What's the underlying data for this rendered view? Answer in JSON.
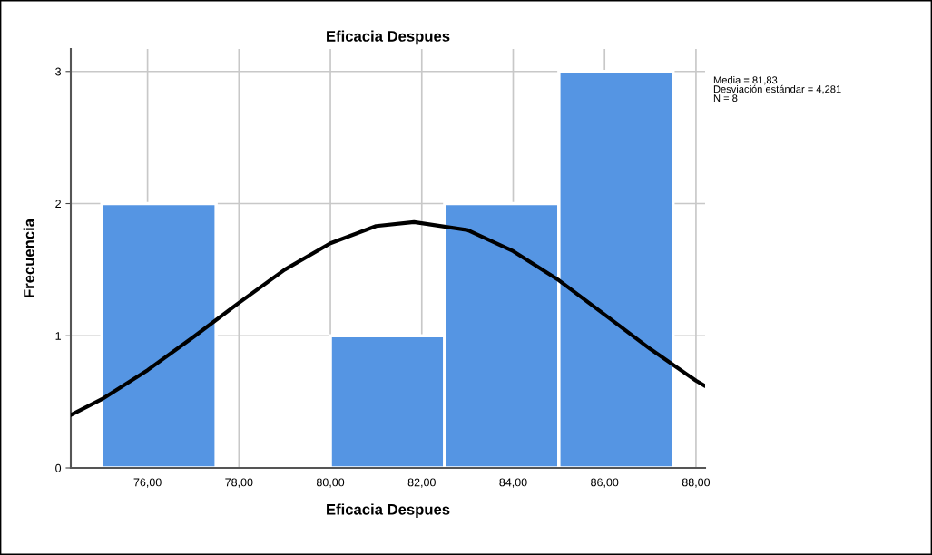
{
  "chart_data": {
    "type": "histogram",
    "title": "Eficacia Despues",
    "xlabel": "Eficacia Despues",
    "ylabel": "Frecuencia",
    "series": [
      {
        "bins": [
          75,
          77.5,
          80,
          82.5,
          85,
          87.5
        ],
        "values": [
          2,
          0,
          1,
          2,
          3
        ],
        "color": "#5595e3"
      },
      {
        "type": "line",
        "x": [
          74.32,
          75,
          76,
          77,
          78,
          79,
          80,
          81,
          81.83,
          83,
          84,
          85,
          86,
          87,
          88,
          88.2
        ],
        "values": [
          0.4,
          0.52,
          0.74,
          0.99,
          1.25,
          1.5,
          1.7,
          1.83,
          1.86,
          1.8,
          1.64,
          1.42,
          1.16,
          0.9,
          0.66,
          0.62
        ],
        "color": "#000000"
      }
    ],
    "xlim": [
      74.32,
      88.2
    ],
    "ylim": [
      0,
      3.17
    ],
    "xticks": [
      {
        "value": 76,
        "label": "76,00"
      },
      {
        "value": 78,
        "label": "78,00"
      },
      {
        "value": 80,
        "label": "80,00"
      },
      {
        "value": 82,
        "label": "82,00"
      },
      {
        "value": 84,
        "label": "84,00"
      },
      {
        "value": 86,
        "label": "86,00"
      },
      {
        "value": 88,
        "label": "88,00"
      }
    ],
    "yticks": [
      0,
      1,
      2,
      3
    ],
    "grid": true,
    "annotations": [
      "Media = 81,83\nDesviación estándar = 4,281\nN = 8"
    ]
  }
}
